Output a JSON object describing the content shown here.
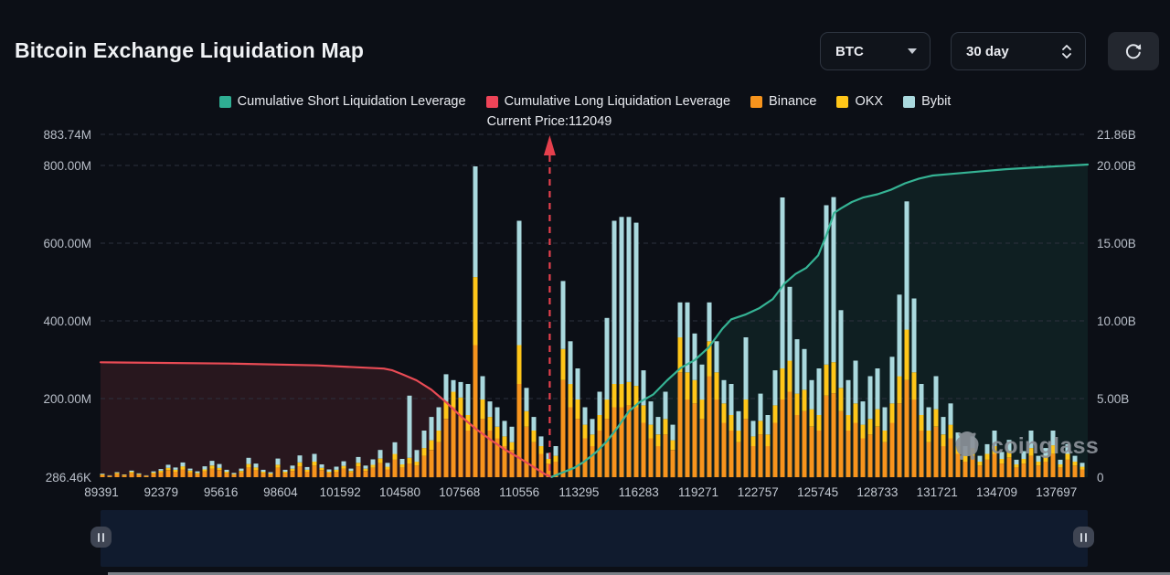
{
  "header": {
    "title": "Bitcoin Exchange Liquidation Map",
    "symbol_select": "BTC",
    "range_select": "30 day"
  },
  "legend": {
    "items": [
      {
        "label": "Cumulative Short Liquidation Leverage",
        "color": "#2fae93"
      },
      {
        "label": "Cumulative Long Liquidation Leverage",
        "color": "#ee4458"
      },
      {
        "label": "Binance",
        "color": "#f7941d"
      },
      {
        "label": "OKX",
        "color": "#ffc619"
      },
      {
        "label": "Bybit",
        "color": "#aad9de"
      }
    ]
  },
  "watermark": {
    "text": "coinglass"
  },
  "chart_data": {
    "type": "bar",
    "title": "Bitcoin Exchange Liquidation Map",
    "left_axis": {
      "unit": "USD",
      "labels": [
        "883.74M",
        "800.00M",
        "600.00M",
        "400.00M",
        "200.00M",
        "286.46K"
      ],
      "max": "883.74M",
      "min": "286.46K"
    },
    "right_axis": {
      "unit": "USD",
      "labels": [
        "21.86B",
        "20.00B",
        "15.00B",
        "10.00B",
        "5.00B",
        "0"
      ],
      "max": "21.86B",
      "min": "0"
    },
    "x_axis": {
      "labels": [
        "89391",
        "92379",
        "95616",
        "98604",
        "101592",
        "104580",
        "107568",
        "110556",
        "113295",
        "116283",
        "119271",
        "122757",
        "125745",
        "128733",
        "131721",
        "134709",
        "137697"
      ]
    },
    "current_price": {
      "label": "Current Price:112049",
      "value": 112049,
      "x_frac": 0.455,
      "color": "#e5404d"
    },
    "grid": "dashed horizontal",
    "legend_position": "top center",
    "bar_series": [
      {
        "name": "Binance",
        "color": "#f7941d"
      },
      {
        "name": "OKX",
        "color": "#ffc619"
      },
      {
        "name": "Bybit",
        "color": "#aad9de"
      }
    ],
    "bar_unit": "M USD (stacked Binance/OKX/Bybit)",
    "bars": [
      [
        5,
        2,
        2
      ],
      [
        3,
        1,
        1
      ],
      [
        8,
        3,
        2
      ],
      [
        4,
        2,
        1
      ],
      [
        10,
        4,
        3
      ],
      [
        6,
        2,
        2
      ],
      [
        3,
        1,
        1
      ],
      [
        9,
        3,
        3
      ],
      [
        12,
        5,
        4
      ],
      [
        18,
        6,
        8
      ],
      [
        14,
        5,
        6
      ],
      [
        20,
        8,
        10
      ],
      [
        12,
        5,
        5
      ],
      [
        8,
        3,
        4
      ],
      [
        15,
        5,
        8
      ],
      [
        22,
        8,
        12
      ],
      [
        18,
        6,
        10
      ],
      [
        10,
        4,
        5
      ],
      [
        6,
        2,
        3
      ],
      [
        12,
        4,
        6
      ],
      [
        25,
        9,
        16
      ],
      [
        18,
        7,
        10
      ],
      [
        10,
        4,
        5
      ],
      [
        7,
        3,
        3
      ],
      [
        24,
        8,
        16
      ],
      [
        10,
        4,
        5
      ],
      [
        16,
        6,
        8
      ],
      [
        28,
        10,
        18
      ],
      [
        14,
        5,
        7
      ],
      [
        30,
        10,
        20
      ],
      [
        18,
        6,
        9
      ],
      [
        10,
        4,
        6
      ],
      [
        14,
        5,
        8
      ],
      [
        22,
        7,
        12
      ],
      [
        12,
        4,
        6
      ],
      [
        28,
        9,
        15
      ],
      [
        16,
        6,
        8
      ],
      [
        24,
        8,
        14
      ],
      [
        36,
        12,
        22
      ],
      [
        20,
        7,
        10
      ],
      [
        45,
        15,
        30
      ],
      [
        25,
        8,
        14
      ],
      [
        35,
        15,
        160
      ],
      [
        30,
        10,
        30
      ],
      [
        55,
        20,
        45
      ],
      [
        70,
        25,
        60
      ],
      [
        90,
        30,
        60
      ],
      [
        150,
        45,
        70
      ],
      [
        180,
        40,
        30
      ],
      [
        160,
        45,
        40
      ],
      [
        120,
        40,
        80
      ],
      [
        340,
        175,
        285
      ],
      [
        150,
        50,
        60
      ],
      [
        120,
        35,
        40
      ],
      [
        100,
        30,
        50
      ],
      [
        80,
        25,
        40
      ],
      [
        70,
        20,
        40
      ],
      [
        240,
        100,
        320
      ],
      [
        130,
        40,
        60
      ],
      [
        90,
        30,
        35
      ],
      [
        60,
        20,
        25
      ],
      [
        35,
        12,
        15
      ],
      [
        40,
        15,
        25
      ],
      [
        250,
        80,
        175
      ],
      [
        180,
        60,
        110
      ],
      [
        150,
        50,
        80
      ],
      [
        100,
        35,
        45
      ],
      [
        80,
        30,
        40
      ],
      [
        120,
        40,
        60
      ],
      [
        150,
        50,
        210
      ],
      [
        180,
        60,
        420
      ],
      [
        180,
        60,
        430
      ],
      [
        185,
        60,
        425
      ],
      [
        180,
        55,
        420
      ],
      [
        140,
        45,
        90
      ],
      [
        100,
        35,
        60
      ],
      [
        80,
        30,
        45
      ],
      [
        110,
        40,
        70
      ],
      [
        70,
        25,
        40
      ],
      [
        270,
        90,
        90
      ],
      [
        200,
        70,
        180
      ],
      [
        190,
        60,
        120
      ],
      [
        150,
        50,
        90
      ],
      [
        260,
        90,
        100
      ],
      [
        200,
        70,
        80
      ],
      [
        140,
        50,
        60
      ],
      [
        120,
        40,
        80
      ],
      [
        90,
        30,
        50
      ],
      [
        150,
        50,
        160
      ],
      [
        80,
        25,
        40
      ],
      [
        110,
        35,
        70
      ],
      [
        80,
        30,
        50
      ],
      [
        140,
        45,
        90
      ],
      [
        200,
        80,
        440
      ],
      [
        220,
        80,
        190
      ],
      [
        160,
        55,
        140
      ],
      [
        170,
        55,
        105
      ],
      [
        130,
        45,
        75
      ],
      [
        120,
        40,
        120
      ],
      [
        210,
        80,
        410
      ],
      [
        216,
        80,
        425
      ],
      [
        170,
        60,
        200
      ],
      [
        120,
        40,
        90
      ],
      [
        140,
        50,
        110
      ],
      [
        100,
        35,
        60
      ],
      [
        110,
        40,
        110
      ],
      [
        130,
        45,
        105
      ],
      [
        90,
        30,
        60
      ],
      [
        140,
        50,
        120
      ],
      [
        190,
        70,
        210
      ],
      [
        250,
        130,
        330
      ],
      [
        200,
        70,
        190
      ],
      [
        120,
        40,
        80
      ],
      [
        90,
        30,
        60
      ],
      [
        130,
        45,
        85
      ],
      [
        80,
        30,
        45
      ],
      [
        100,
        35,
        55
      ],
      [
        60,
        20,
        35
      ],
      [
        40,
        15,
        25
      ],
      [
        55,
        20,
        30
      ],
      [
        30,
        10,
        15
      ],
      [
        45,
        15,
        25
      ],
      [
        60,
        20,
        40
      ],
      [
        35,
        12,
        18
      ],
      [
        50,
        18,
        28
      ],
      [
        25,
        8,
        12
      ],
      [
        35,
        12,
        20
      ],
      [
        55,
        20,
        45
      ],
      [
        30,
        10,
        15
      ],
      [
        40,
        15,
        20
      ],
      [
        60,
        22,
        38
      ],
      [
        25,
        8,
        12
      ],
      [
        45,
        15,
        25
      ],
      [
        30,
        10,
        15
      ],
      [
        20,
        7,
        10
      ]
    ],
    "lines": [
      {
        "name": "Cumulative Long Liquidation Leverage",
        "color": "#e94b55",
        "fill": "rgba(233,75,85,0.13)",
        "axis": "right",
        "unit": "B USD",
        "points": [
          [
            0,
            7.35
          ],
          [
            0.13,
            7.27
          ],
          [
            0.22,
            7.15
          ],
          [
            0.287,
            6.95
          ],
          [
            0.295,
            6.85
          ],
          [
            0.305,
            6.6
          ],
          [
            0.32,
            6.2
          ],
          [
            0.335,
            5.6
          ],
          [
            0.35,
            4.8
          ],
          [
            0.365,
            3.9
          ],
          [
            0.38,
            3.1
          ],
          [
            0.395,
            2.4
          ],
          [
            0.41,
            1.75
          ],
          [
            0.425,
            1.2
          ],
          [
            0.44,
            0.6
          ],
          [
            0.45,
            0.2
          ],
          [
            0.457,
            0.02
          ]
        ]
      },
      {
        "name": "Cumulative Short Liquidation Leverage",
        "color": "#35b394",
        "fill": "rgba(53,179,148,0.10)",
        "axis": "right",
        "unit": "B USD",
        "points": [
          [
            0.457,
            0.02
          ],
          [
            0.468,
            0.3
          ],
          [
            0.48,
            0.6
          ],
          [
            0.49,
            1.0
          ],
          [
            0.502,
            1.6
          ],
          [
            0.513,
            2.3
          ],
          [
            0.524,
            3.2
          ],
          [
            0.535,
            4.2
          ],
          [
            0.546,
            4.8
          ],
          [
            0.56,
            5.3
          ],
          [
            0.574,
            6.2
          ],
          [
            0.588,
            7.0
          ],
          [
            0.602,
            7.5
          ],
          [
            0.616,
            8.3
          ],
          [
            0.63,
            9.5
          ],
          [
            0.639,
            10.1
          ],
          [
            0.653,
            10.4
          ],
          [
            0.667,
            10.8
          ],
          [
            0.681,
            11.4
          ],
          [
            0.693,
            12.4
          ],
          [
            0.704,
            13.0
          ],
          [
            0.715,
            13.4
          ],
          [
            0.727,
            14.2
          ],
          [
            0.736,
            15.6
          ],
          [
            0.743,
            16.9
          ],
          [
            0.75,
            17.2
          ],
          [
            0.761,
            17.6
          ],
          [
            0.773,
            17.9
          ],
          [
            0.787,
            18.1
          ],
          [
            0.801,
            18.4
          ],
          [
            0.815,
            18.8
          ],
          [
            0.829,
            19.1
          ],
          [
            0.843,
            19.3
          ],
          [
            0.861,
            19.4
          ],
          [
            0.889,
            19.55
          ],
          [
            0.917,
            19.7
          ],
          [
            0.944,
            19.8
          ],
          [
            0.972,
            19.9
          ],
          [
            1,
            20.0
          ]
        ]
      }
    ]
  }
}
